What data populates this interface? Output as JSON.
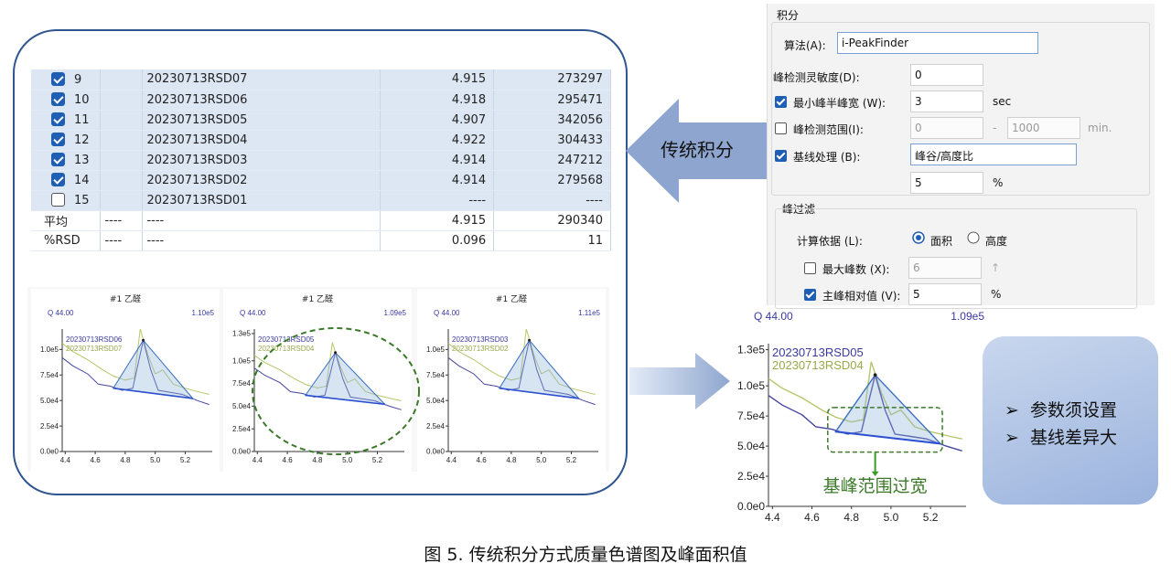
{
  "table": {
    "rows": [
      {
        "checked": true,
        "no": "9",
        "name": "20230713RSD07",
        "rt": "4.915",
        "area": "273297"
      },
      {
        "checked": true,
        "no": "10",
        "name": "20230713RSD06",
        "rt": "4.918",
        "area": "295471"
      },
      {
        "checked": true,
        "no": "11",
        "name": "20230713RSD05",
        "rt": "4.907",
        "area": "342056"
      },
      {
        "checked": true,
        "no": "12",
        "name": "20230713RSD04",
        "rt": "4.922",
        "area": "304433"
      },
      {
        "checked": true,
        "no": "13",
        "name": "20230713RSD03",
        "rt": "4.914",
        "area": "247212"
      },
      {
        "checked": true,
        "no": "14",
        "name": "20230713RSD02",
        "rt": "4.914",
        "area": "279568"
      },
      {
        "checked": false,
        "no": "15",
        "name": "20230713RSD01",
        "rt": "----",
        "area": "----"
      }
    ],
    "summary": [
      {
        "label": "平均",
        "c2": "----",
        "c3": "----",
        "rt": "4.915",
        "area": "290340"
      },
      {
        "label": "%RSD",
        "c2": "----",
        "c3": "----",
        "rt": "0.096",
        "area": "11"
      }
    ]
  },
  "arrow_left_label": "传统积分",
  "small_charts": [
    {
      "title": "#1 乙醛",
      "q": "Q 44.00",
      "max": "1.10e5",
      "legend": [
        "20230713RSD06",
        "20230713RSD07"
      ],
      "yticks": [
        "1.0e5",
        "7.5e4",
        "5.0e4",
        "2.5e4",
        "0.0e0"
      ],
      "xticks": [
        "4.4",
        "4.6",
        "4.8",
        "5.0",
        "5.2"
      ]
    },
    {
      "title": "#1 乙醛",
      "q": "Q 44.00",
      "max": "1.09e5",
      "legend": [
        "20230713RSD05",
        "20230713RSD04"
      ],
      "yticks": [
        "1.3e5",
        "1.0e5",
        "7.5e4",
        "5.0e4",
        "2.5e4",
        "0.0e0"
      ],
      "xticks": [
        "4.4",
        "4.6",
        "4.8",
        "5.0",
        "5.2"
      ]
    },
    {
      "title": "#1 乙醛",
      "q": "Q 44.00",
      "max": "1.11e5",
      "legend": [
        "20230713RSD03",
        "20230713RSD02"
      ],
      "yticks": [
        "1.0e5",
        "7.5e4",
        "5.0e4",
        "2.5e4",
        "0.0e0"
      ],
      "xticks": [
        "4.4",
        "4.6",
        "4.8",
        "5.0",
        "5.2"
      ]
    }
  ],
  "dialog": {
    "section": "积分",
    "algorithm_label": "算法(A):",
    "algorithm_value": "i-PeakFinder",
    "sensitivity_label": "峰检测灵敏度(D):",
    "sensitivity_value": "0",
    "min_halfwidth_label": "最小峰半峰宽 (W):",
    "min_halfwidth_value": "3",
    "min_halfwidth_unit": "sec",
    "range_label": "峰检测范围(I):",
    "range_from": "0",
    "range_sep": "-",
    "range_to": "1000",
    "range_unit": "min.",
    "baseline_label": "基线处理 (B):",
    "baseline_value": "峰谷/高度比",
    "baseline_pct": "5",
    "baseline_pct_unit": "%",
    "filter_section": "峰过滤",
    "calc_label": "计算依据 (L):",
    "calc_opt1": "面积",
    "calc_opt2": "高度",
    "maxpeaks_label": "最大峰数 (X):",
    "maxpeaks_value": "6",
    "maxpeaks_arrow": "↑",
    "relative_label": "主峰相对值 (V):",
    "relative_value": "5",
    "relative_unit": "%"
  },
  "big_chart": {
    "q": "Q 44.00",
    "max": "1.09e5",
    "legend": [
      "20230713RSD05",
      "20230713RSD04"
    ],
    "yticks": [
      "1.3e5",
      "1.0e5",
      "7.5e4",
      "5.0e4",
      "2.5e4",
      "0.0e0"
    ],
    "xticks": [
      "4.4",
      "4.6",
      "4.8",
      "5.0",
      "5.2"
    ],
    "annotation": "基峰范围过宽"
  },
  "callout": {
    "lines": [
      "参数须设置",
      "基线差异大"
    ],
    "bullet": "➢"
  },
  "caption": "图 5. 传统积分方式质量色谱图及峰面积值",
  "colors": {
    "blue_series": "#3a3aa0",
    "olive_series": "#b7c66a",
    "dashed_green": "#3c7a2a",
    "frame": "#2f5690",
    "arrow": "#8ea6cf"
  }
}
